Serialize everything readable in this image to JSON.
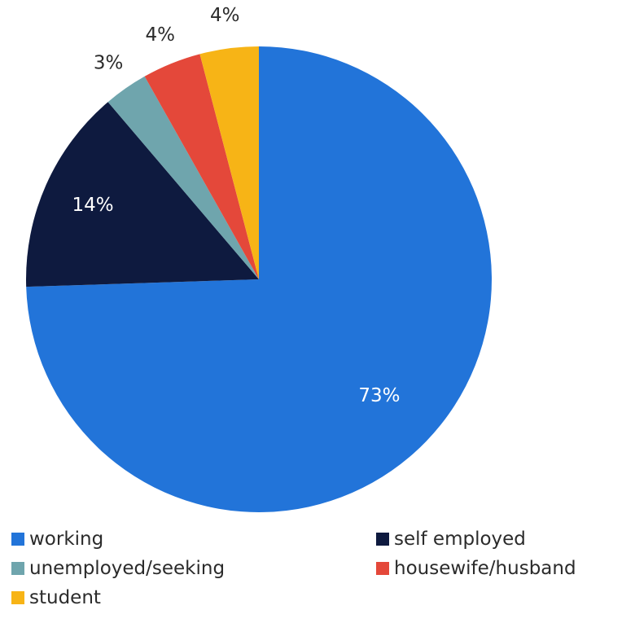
{
  "chart_data": {
    "type": "pie",
    "title": "",
    "start_angle_deg": 0,
    "direction": "clockwise",
    "slices": [
      {
        "name": "working",
        "value": 73,
        "label": "73%",
        "color": "#2274D9",
        "label_color": "#ffffff"
      },
      {
        "name": "self employed",
        "value": 14,
        "label": "14%",
        "color": "#0E1A3F",
        "label_color": "#ffffff"
      },
      {
        "name": "unemployed/seeking",
        "value": 3,
        "label": "3%",
        "color": "#6FA5AD",
        "label_color": "#2b2b2b"
      },
      {
        "name": "housewife/husband",
        "value": 4,
        "label": "4%",
        "color": "#E4483A",
        "label_color": "#2b2b2b"
      },
      {
        "name": "student",
        "value": 4,
        "label": "4%",
        "color": "#F7B416",
        "label_color": "#2b2b2b"
      }
    ],
    "legend_position": "bottom"
  }
}
